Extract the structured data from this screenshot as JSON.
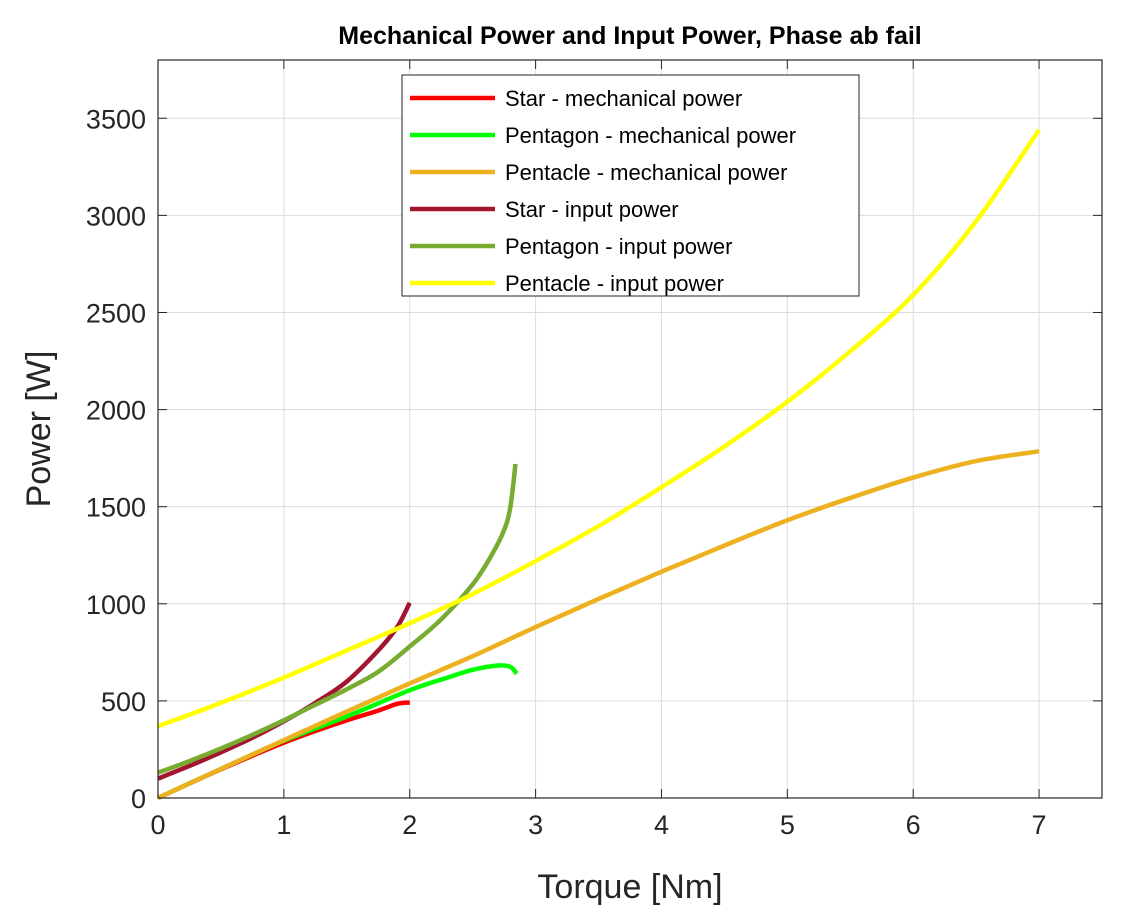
{
  "chart_data": {
    "type": "line",
    "title": "Mechanical Power and Input Power, Phase ab fail",
    "xlabel": "Torque [Nm]",
    "ylabel": "Power [W]",
    "xlim": [
      0,
      7.5
    ],
    "ylim": [
      0,
      3800
    ],
    "xticks": [
      0,
      1,
      2,
      3,
      4,
      5,
      6,
      7
    ],
    "yticks": [
      0,
      500,
      1000,
      1500,
      2000,
      2500,
      3000,
      3500
    ],
    "grid": true,
    "legend_position": "top-center",
    "series": [
      {
        "name": "Star - mechanical power",
        "color": "#ff0000",
        "points": [
          [
            0,
            0
          ],
          [
            0.25,
            75
          ],
          [
            0.5,
            148
          ],
          [
            0.75,
            218
          ],
          [
            1.0,
            285
          ],
          [
            1.25,
            345
          ],
          [
            1.5,
            400
          ],
          [
            1.75,
            450
          ],
          [
            1.9,
            485
          ],
          [
            2.0,
            492
          ]
        ]
      },
      {
        "name": "Pentagon - mechanical power",
        "color": "#00ff00",
        "points": [
          [
            0,
            0
          ],
          [
            0.5,
            150
          ],
          [
            1.0,
            295
          ],
          [
            1.5,
            420
          ],
          [
            2.0,
            555
          ],
          [
            2.3,
            620
          ],
          [
            2.5,
            660
          ],
          [
            2.7,
            682
          ],
          [
            2.8,
            675
          ],
          [
            2.85,
            640
          ]
        ]
      },
      {
        "name": "Pentacle - mechanical power",
        "color": "#edb120",
        "points": [
          [
            0,
            0
          ],
          [
            0.5,
            150
          ],
          [
            1.0,
            298
          ],
          [
            1.5,
            445
          ],
          [
            2.0,
            590
          ],
          [
            2.5,
            730
          ],
          [
            3.0,
            880
          ],
          [
            3.5,
            1025
          ],
          [
            4.0,
            1165
          ],
          [
            4.5,
            1300
          ],
          [
            5.0,
            1430
          ],
          [
            5.5,
            1545
          ],
          [
            6.0,
            1650
          ],
          [
            6.5,
            1735
          ],
          [
            7.0,
            1785
          ]
        ]
      },
      {
        "name": "Star - input power",
        "color": "#a2142f",
        "points": [
          [
            0,
            100
          ],
          [
            0.25,
            165
          ],
          [
            0.5,
            235
          ],
          [
            0.75,
            310
          ],
          [
            1.0,
            395
          ],
          [
            1.25,
            490
          ],
          [
            1.5,
            600
          ],
          [
            1.75,
            760
          ],
          [
            1.9,
            880
          ],
          [
            2.0,
            1005
          ]
        ]
      },
      {
        "name": "Pentagon - input power",
        "color": "#77ac30",
        "points": [
          [
            0,
            130
          ],
          [
            0.25,
            190
          ],
          [
            0.5,
            255
          ],
          [
            0.75,
            325
          ],
          [
            1.0,
            400
          ],
          [
            1.25,
            480
          ],
          [
            1.5,
            560
          ],
          [
            1.75,
            650
          ],
          [
            2.0,
            780
          ],
          [
            2.25,
            920
          ],
          [
            2.5,
            1100
          ],
          [
            2.65,
            1250
          ],
          [
            2.75,
            1380
          ],
          [
            2.8,
            1500
          ],
          [
            2.84,
            1720
          ]
        ]
      },
      {
        "name": "Pentacle - input power",
        "color": "#ffff00",
        "points": [
          [
            0,
            370
          ],
          [
            0.5,
            490
          ],
          [
            1.0,
            620
          ],
          [
            1.5,
            760
          ],
          [
            2.0,
            900
          ],
          [
            2.5,
            1050
          ],
          [
            3.0,
            1220
          ],
          [
            3.5,
            1400
          ],
          [
            4.0,
            1600
          ],
          [
            4.5,
            1810
          ],
          [
            5.0,
            2040
          ],
          [
            5.5,
            2300
          ],
          [
            6.0,
            2590
          ],
          [
            6.5,
            2970
          ],
          [
            7.0,
            3440
          ]
        ]
      }
    ]
  }
}
